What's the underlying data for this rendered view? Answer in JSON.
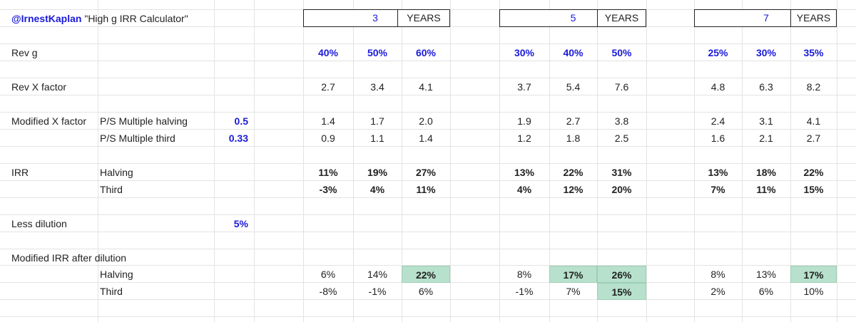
{
  "title": {
    "handle": "@IrnestKaplan",
    "name": "\"High g IRR Calculator\""
  },
  "horizons": [
    {
      "years": "3",
      "label": "YEARS"
    },
    {
      "years": "5",
      "label": "YEARS"
    },
    {
      "years": "7",
      "label": "YEARS"
    }
  ],
  "labels": {
    "rev_g": "Rev g",
    "rev_x": "Rev X factor",
    "mod_x": "Modified X factor",
    "ps_halving": "P/S Multiple halving",
    "ps_third": "P/S Multiple third",
    "irr": "IRR",
    "halving": "Halving",
    "third": "Third",
    "less_dilution": "Less dilution",
    "mod_irr": "Modified IRR after dilution"
  },
  "params": {
    "ps_halving": "0.5",
    "ps_third": "0.33",
    "dilution": "5%"
  },
  "rows": {
    "rev_g": [
      "40%",
      "50%",
      "60%",
      "30%",
      "40%",
      "50%",
      "25%",
      "30%",
      "35%"
    ],
    "rev_x": [
      "2.7",
      "3.4",
      "4.1",
      "3.7",
      "5.4",
      "7.6",
      "4.8",
      "6.3",
      "8.2"
    ],
    "mod_x_half": [
      "1.4",
      "1.7",
      "2.0",
      "1.9",
      "2.7",
      "3.8",
      "2.4",
      "3.1",
      "4.1"
    ],
    "mod_x_third": [
      "0.9",
      "1.1",
      "1.4",
      "1.2",
      "1.8",
      "2.5",
      "1.6",
      "2.1",
      "2.7"
    ],
    "irr_half": [
      "11%",
      "19%",
      "27%",
      "13%",
      "22%",
      "31%",
      "13%",
      "18%",
      "22%"
    ],
    "irr_third": [
      "-3%",
      "4%",
      "11%",
      "4%",
      "12%",
      "20%",
      "7%",
      "11%",
      "15%"
    ],
    "mirr_half": [
      "6%",
      "14%",
      "22%",
      "8%",
      "17%",
      "26%",
      "8%",
      "13%",
      "17%"
    ],
    "mirr_third": [
      "-8%",
      "-1%",
      "6%",
      "-1%",
      "7%",
      "15%",
      "2%",
      "6%",
      "10%"
    ]
  },
  "highlighted": {
    "mirr_half": [
      2,
      4,
      5,
      8
    ],
    "mirr_third": [
      5
    ]
  },
  "colors": {
    "highlight": "#b7e1cd",
    "accent_blue": "#1a1adb",
    "gridline": "#e3e3e3"
  }
}
